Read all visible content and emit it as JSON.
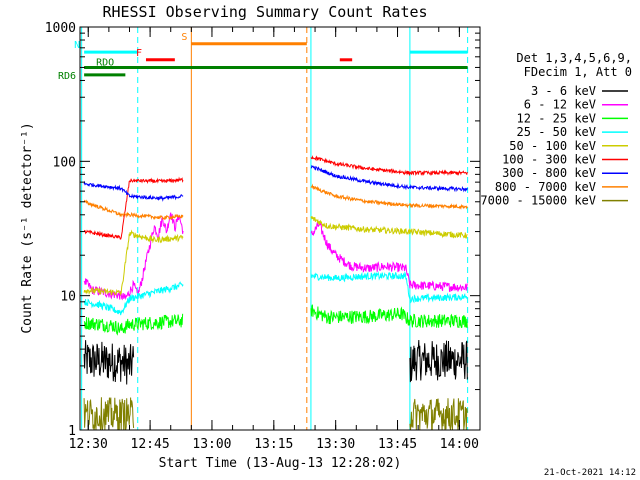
{
  "chart_data": {
    "type": "line",
    "title": "RHESSI Observing Summary Count Rates",
    "xlabel": "Start Time (13-Aug-13 12:28:02)",
    "ylabel": "Count Rate (s⁻¹ detector⁻¹)",
    "yscale": "log",
    "ylim": [
      1,
      1000
    ],
    "xlim_minutes": [
      0,
      97
    ],
    "x_tick_labels": [
      "12:30",
      "12:45",
      "13:00",
      "13:15",
      "13:30",
      "13:45",
      "14:00"
    ],
    "x_tick_minutes": [
      2,
      17,
      32,
      47,
      62,
      77,
      92
    ],
    "y_tick_labels": [
      "1",
      "10",
      "100",
      "1000"
    ],
    "y_tick_values": [
      1,
      10,
      100,
      1000
    ],
    "legend_header": [
      "Det 1,3,4,5,6,9,",
      "FDecim 1, Att 0"
    ],
    "legend_position": "right",
    "footer_date": "21-Oct-2021 14:12",
    "series": [
      {
        "name": "3 - 6 keV",
        "color": "#000000",
        "seg1": [
          [
            1,
            3.3
          ],
          [
            10,
            3.2
          ],
          [
            12,
            3.0
          ],
          [
            13,
            3.3
          ]
        ],
        "seg2": [
          [
            80,
            3.0
          ],
          [
            81,
            3.3
          ],
          [
            94,
            3.3
          ]
        ],
        "noise": 0.35
      },
      {
        "name": "6 - 12 keV",
        "color": "#ff00ff",
        "seg1": [
          [
            1,
            13
          ],
          [
            3,
            11
          ],
          [
            10,
            10
          ],
          [
            11,
            9.5
          ],
          [
            13,
            12
          ],
          [
            14,
            10
          ],
          [
            15,
            13
          ],
          [
            16,
            18
          ],
          [
            17,
            24
          ],
          [
            18,
            33
          ],
          [
            19,
            28
          ],
          [
            20,
            38
          ],
          [
            21,
            30
          ],
          [
            22,
            42
          ],
          [
            23,
            32
          ],
          [
            24,
            40
          ],
          [
            25,
            30
          ]
        ],
        "seg2": [
          [
            56,
            28
          ],
          [
            58,
            34
          ],
          [
            60,
            24
          ],
          [
            62,
            20
          ],
          [
            64,
            18
          ],
          [
            66,
            16.5
          ],
          [
            70,
            16
          ],
          [
            74,
            16.5
          ],
          [
            79,
            16
          ],
          [
            80,
            12
          ],
          [
            94,
            11.5
          ]
        ],
        "noise": 0.08
      },
      {
        "name": "12 - 25 keV",
        "color": "#00ff00",
        "seg1": [
          [
            1,
            6.3
          ],
          [
            8,
            6.0
          ],
          [
            10,
            5.6
          ],
          [
            12,
            6.1
          ],
          [
            15,
            6.2
          ],
          [
            25,
            6.5
          ]
        ],
        "seg2": [
          [
            56,
            7.8
          ],
          [
            60,
            6.9
          ],
          [
            70,
            7.0
          ],
          [
            78,
            7.3
          ],
          [
            80,
            6.5
          ],
          [
            94,
            6.5
          ]
        ],
        "noise": 0.12
      },
      {
        "name": "25 - 50 keV",
        "color": "#00ffff",
        "seg1": [
          [
            1,
            9.0
          ],
          [
            5,
            8.5
          ],
          [
            10,
            7.5
          ],
          [
            12,
            9.5
          ],
          [
            20,
            11
          ],
          [
            25,
            12
          ]
        ],
        "seg2": [
          [
            56,
            14
          ],
          [
            62,
            13.5
          ],
          [
            70,
            14
          ],
          [
            79,
            14
          ],
          [
            80,
            9.5
          ],
          [
            94,
            9.8
          ]
        ],
        "noise": 0.06
      },
      {
        "name": "50 - 100 keV",
        "color": "#cccc00",
        "seg1": [
          [
            1,
            11
          ],
          [
            10,
            10.5
          ],
          [
            12,
            29
          ],
          [
            18,
            26
          ],
          [
            25,
            27
          ]
        ],
        "seg2": [
          [
            56,
            38
          ],
          [
            60,
            33
          ],
          [
            70,
            31
          ],
          [
            80,
            30
          ],
          [
            94,
            28
          ]
        ],
        "noise": 0.05
      },
      {
        "name": "100 - 300 keV",
        "color": "#ff0000",
        "seg1": [
          [
            1,
            30
          ],
          [
            10,
            27
          ],
          [
            12,
            72
          ],
          [
            20,
            71
          ],
          [
            25,
            73
          ]
        ],
        "seg2": [
          [
            56,
            108
          ],
          [
            62,
            96
          ],
          [
            70,
            88
          ],
          [
            80,
            82
          ],
          [
            94,
            82
          ]
        ],
        "noise": 0.03
      },
      {
        "name": "300 - 800 keV",
        "color": "#0000ff",
        "seg1": [
          [
            1,
            68
          ],
          [
            10,
            63
          ],
          [
            12,
            55
          ],
          [
            20,
            53
          ],
          [
            25,
            55
          ]
        ],
        "seg2": [
          [
            56,
            92
          ],
          [
            62,
            78
          ],
          [
            70,
            70
          ],
          [
            80,
            64
          ],
          [
            94,
            62
          ]
        ],
        "noise": 0.03
      },
      {
        "name": "800 - 7000 keV",
        "color": "#ff8000",
        "seg1": [
          [
            1,
            50
          ],
          [
            10,
            40
          ],
          [
            12,
            40
          ],
          [
            20,
            38
          ],
          [
            25,
            39
          ]
        ],
        "seg2": [
          [
            56,
            65
          ],
          [
            62,
            55
          ],
          [
            70,
            50
          ],
          [
            80,
            47
          ],
          [
            94,
            46
          ]
        ],
        "noise": 0.03
      },
      {
        "name": "7000 - 15000 keV",
        "color": "#808000",
        "seg1": [
          [
            1,
            1.3
          ],
          [
            13,
            1.3
          ]
        ],
        "seg2": [
          [
            80,
            1.3
          ],
          [
            94,
            1.3
          ]
        ],
        "noise": 0.3
      }
    ],
    "flags": [
      {
        "label": "N",
        "color": "#00ffff",
        "x0": 1,
        "x1": 14,
        "value": 650
      },
      {
        "label": "",
        "color": "#00ffff",
        "x0": 80,
        "x1": 94,
        "value": 650
      },
      {
        "label": "S",
        "color": "#ff8000",
        "x0": 27,
        "x1": 55,
        "value": 750
      },
      {
        "label": "F",
        "color": "#ff0000",
        "x0": 16,
        "x1": 23,
        "value": 570
      },
      {
        "label": "",
        "color": "#ff0000",
        "x0": 63,
        "x1": 66,
        "value": 570
      },
      {
        "label": "RDO",
        "color": "#008000",
        "x0": 1,
        "x1": 94,
        "value": 500
      },
      {
        "label": "RD6",
        "color": "#008000",
        "x0": 1,
        "x1": 11,
        "value": 440
      }
    ],
    "vlines": [
      {
        "x": 0.4,
        "color": "#00ffff",
        "dash": false
      },
      {
        "x": 14,
        "color": "#00ffff",
        "dash": true
      },
      {
        "x": 27,
        "color": "#ff8000",
        "dash": false
      },
      {
        "x": 55,
        "color": "#ff8000",
        "dash": true
      },
      {
        "x": 56,
        "color": "#00ffff",
        "dash": false
      },
      {
        "x": 80,
        "color": "#00ffff",
        "dash": false
      },
      {
        "x": 94,
        "color": "#00ffff",
        "dash": true
      }
    ]
  }
}
